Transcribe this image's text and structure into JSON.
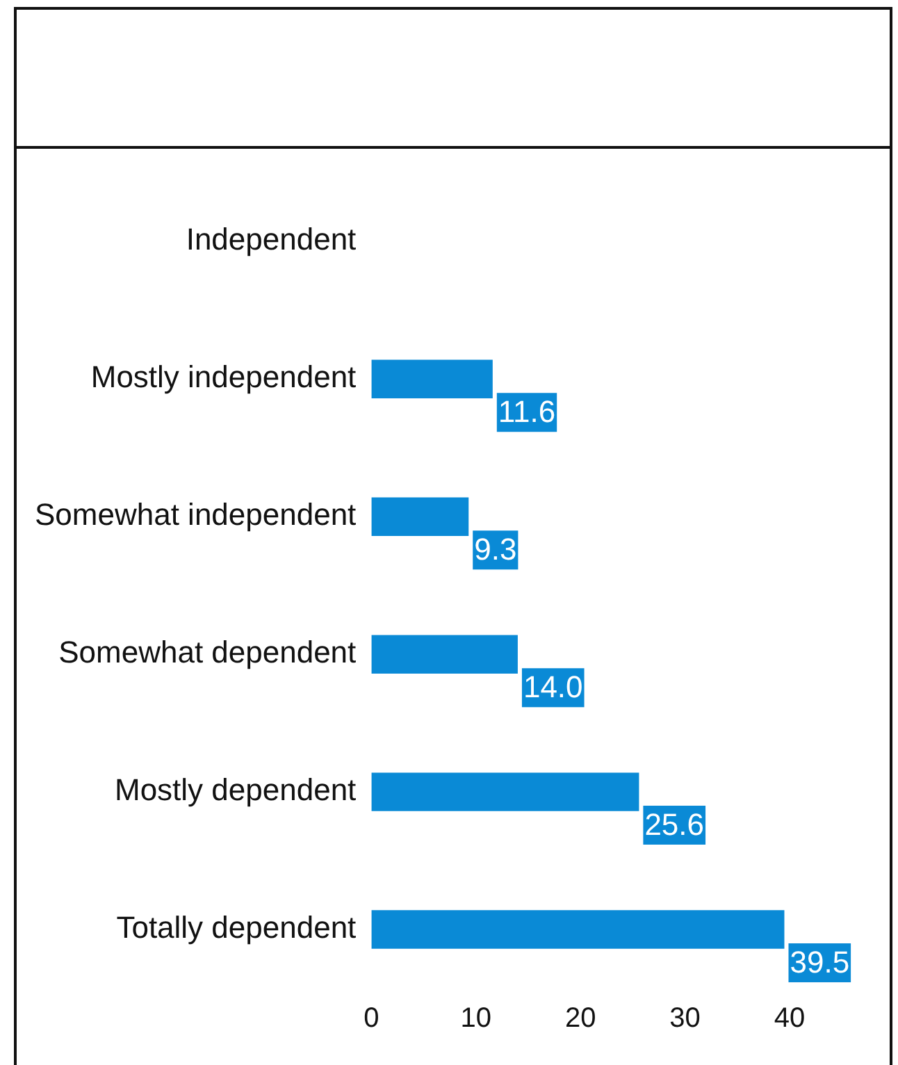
{
  "chart_data": {
    "type": "bar",
    "orientation": "horizontal",
    "categories": [
      "Independent",
      "Mostly independent",
      "Somewhat independent",
      "Somewhat dependent",
      "Mostly dependent",
      "Totally dependent"
    ],
    "values": [
      null,
      11.6,
      9.3,
      14.0,
      25.6,
      39.5
    ],
    "value_labels": [
      null,
      "11.6",
      "9.3",
      "14.0",
      "25.6",
      "39.5"
    ],
    "color": "#0a8ad6",
    "xlim": [
      0,
      40
    ],
    "xticks": [
      0,
      10,
      20,
      30,
      40
    ],
    "grid": false,
    "legend": false
  }
}
